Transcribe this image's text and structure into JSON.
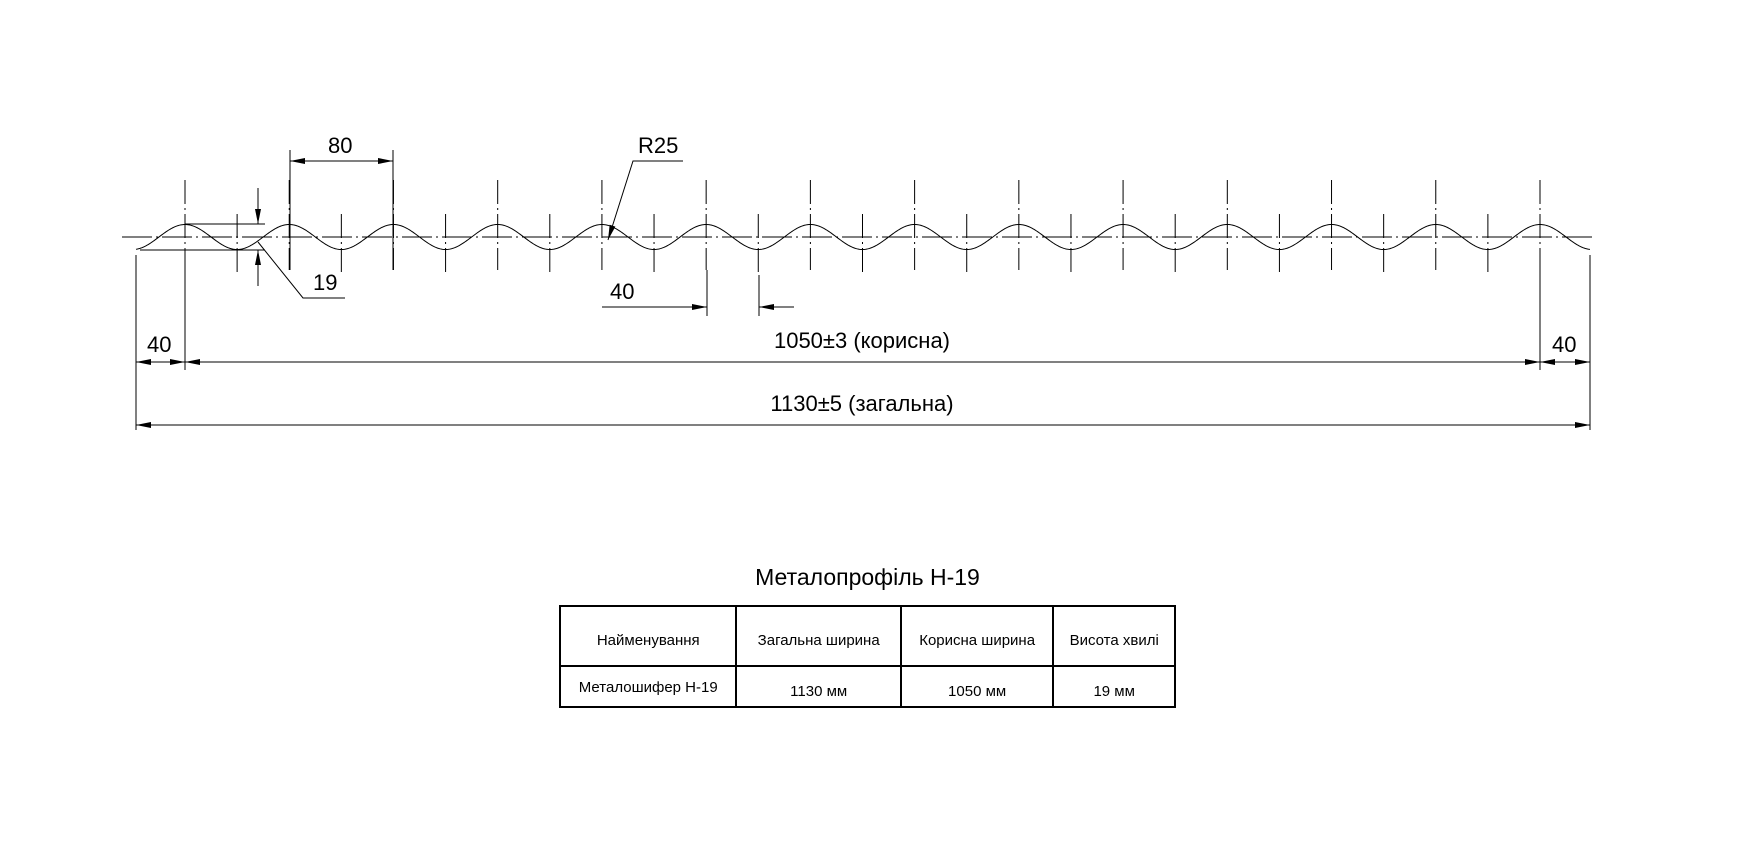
{
  "drawing": {
    "dimensions": {
      "pitch": "80",
      "radius": "R25",
      "wave_height": "19",
      "half_pitch": "40",
      "left_margin": "40",
      "right_margin": "40",
      "useful_width": "1050±3 (корисна)",
      "total_width": "1130±5 (загальна)"
    },
    "crest_count": 14
  },
  "spec": {
    "title": "Металопрофіль Н-19",
    "headers": [
      "Найменування",
      "Загальна ширина",
      "Корисна ширина",
      "Висота хвилі"
    ],
    "row": [
      "Металошифер Н-19",
      "1130 мм",
      "1050 мм",
      "19 мм"
    ]
  }
}
